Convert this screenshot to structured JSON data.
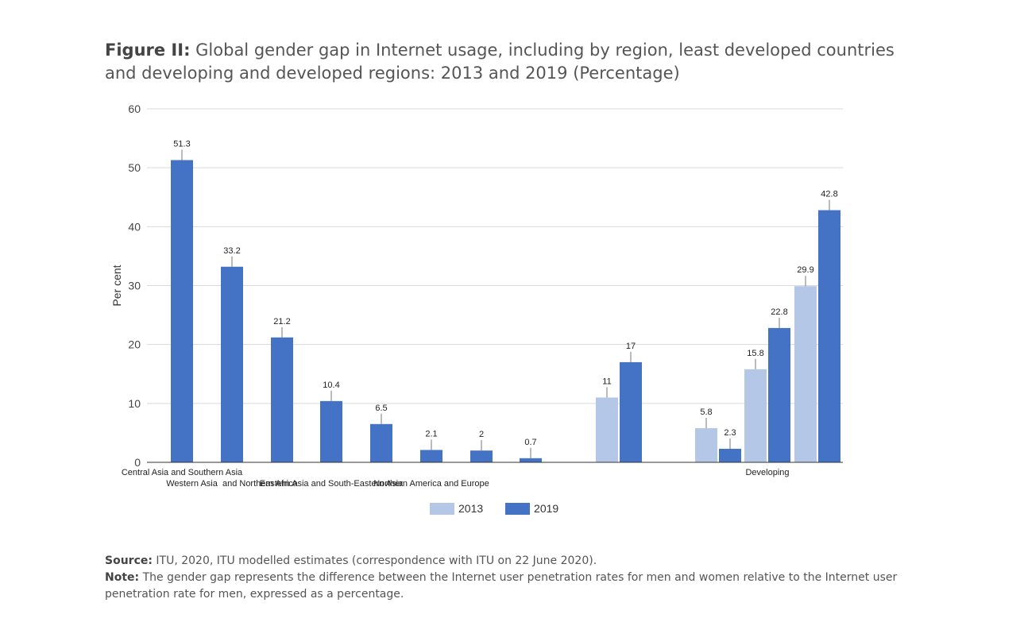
{
  "title": {
    "prefix": "Figure II:",
    "text": "Global gender gap in Internet usage, including by region, least developed countries and developing and developed regions: 2013 and 2019 (Percentage)"
  },
  "chart_data": {
    "type": "bar",
    "ylabel": "Per cent",
    "ylim": [
      0,
      60
    ],
    "yticks": [
      0,
      10,
      20,
      30,
      40,
      50,
      60
    ],
    "grid": true,
    "legend": {
      "position": "bottom",
      "entries": [
        "2013",
        "2019"
      ]
    },
    "colors": {
      "2013": "#b4c7e7",
      "2019": "#4472c4",
      "grid": "#d9d9d9",
      "axis": "#333333"
    },
    "groups": [
      {
        "label": "Central Asia and Southern Asia",
        "bars": [
          {
            "series": "2019",
            "value": 51.3
          }
        ]
      },
      {
        "label": "Western Asia  and Northern Africa",
        "bars": [
          {
            "series": "2019",
            "value": 33.2
          }
        ]
      },
      {
        "label": "",
        "bars": [
          {
            "series": "2019",
            "value": 21.2
          }
        ]
      },
      {
        "label": "Eastern Asia and South-Eastern Asia",
        "bars": [
          {
            "series": "2019",
            "value": 10.4
          }
        ]
      },
      {
        "label": "",
        "bars": [
          {
            "series": "2019",
            "value": 6.5
          }
        ]
      },
      {
        "label": "Northern America and Europe",
        "bars": [
          {
            "series": "2019",
            "value": 2.1
          }
        ]
      },
      {
        "label": "",
        "bars": [
          {
            "series": "2019",
            "value": 2
          }
        ]
      },
      {
        "label": "",
        "bars": [
          {
            "series": "2019",
            "value": 0.7
          }
        ]
      },
      {
        "label": "",
        "bars": [
          {
            "series": "2013",
            "value": 11
          },
          {
            "series": "2019",
            "value": 17
          }
        ]
      },
      {
        "label": "",
        "bars": [
          {
            "series": "2013",
            "value": 5.8
          },
          {
            "series": "2019",
            "value": 2.3
          }
        ]
      },
      {
        "label": "Developing",
        "bars": [
          {
            "series": "2013",
            "value": 15.8
          },
          {
            "series": "2019",
            "value": 22.8
          }
        ]
      },
      {
        "label": "",
        "bars": [
          {
            "series": "2013",
            "value": 29.9
          },
          {
            "series": "2019",
            "value": 42.8
          }
        ]
      }
    ]
  },
  "notes": {
    "source_label": "Source:",
    "source_text": " ITU, 2020, ITU modelled estimates (correspondence with ITU on 22 June 2020).",
    "note_label": "Note:",
    "note_text": " The gender gap represents the difference between the Internet user penetration rates for men and women relative to the Internet user penetration rate for men, expressed as a percentage."
  }
}
